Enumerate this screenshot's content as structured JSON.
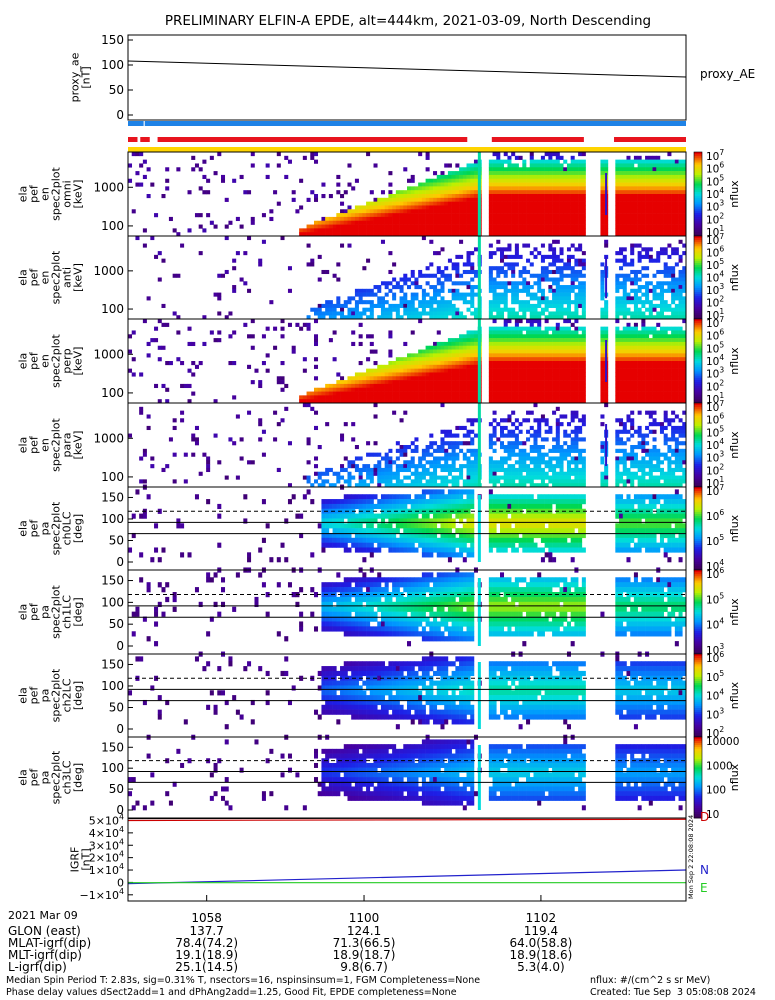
{
  "title": "PRELIMINARY ELFIN-A EPDE, alt=444km, 2021-03-09, North Descending",
  "colors": {
    "red": "#e8141e",
    "blue": "#1e82e6",
    "yellow": "#ffd400",
    "purple": "#3c005a",
    "field_N": "#2222cc",
    "field_E": "#22cc22",
    "field_D": "#cc0000"
  },
  "time_axis": {
    "date_label": "2021 Mar 09",
    "ticks": [
      "1058",
      "1100",
      "1102"
    ],
    "rows": [
      {
        "label": "GLON (east)",
        "values": [
          "137.7",
          "124.1",
          "119.4"
        ]
      },
      {
        "label": "MLAT-igrf(dip)",
        "values": [
          "78.4(74.2)",
          "71.3(66.5)",
          "64.0(58.8)"
        ]
      },
      {
        "label": "MLT-igrf(dip)",
        "values": [
          "19.1(18.9)",
          "18.9(18.7)",
          "18.9(18.6)"
        ]
      },
      {
        "label": "L-igrf(dip)",
        "values": [
          "25.1(14.5)",
          "9.8(6.7)",
          "5.3(4.0)"
        ]
      }
    ]
  },
  "footer": {
    "left_line1": "Median Spin Period T: 2.83s, sig=0.31% T, nsectors=16, nspinsinsum=1, FGM Completeness=None",
    "left_line2": "Phase delay values dSect2add=1 and dPhAng2add=1.25, Good Fit, EPDE completeness=None",
    "right_line1": "nflux: #/(cm^2 s sr MeV)",
    "right_line2": "Created: Tue Sep  3 05:08:08 2024",
    "vertical_stamp": "Mon Sep  2 22:08:08 2024"
  },
  "chart_data": [
    {
      "type": "line",
      "panel": "proxy_ae",
      "ylabel": [
        "proxy_ae",
        "[nT]"
      ],
      "legend": "proxy_AE",
      "y_ticks": [
        "150",
        "100",
        "50",
        "0"
      ],
      "ylim": [
        -10,
        160
      ],
      "x": [
        0,
        1
      ],
      "values": [
        108,
        76
      ]
    },
    {
      "type": "table",
      "panel": "status_bars",
      "segments": [
        {
          "color": "red",
          "row": 0,
          "from": 0.0,
          "to": 0.017
        },
        {
          "color": "red",
          "row": 0,
          "from": 0.022,
          "to": 0.039
        },
        {
          "color": "red",
          "row": 0,
          "from": 0.053,
          "to": 0.608
        },
        {
          "color": "red",
          "row": 0,
          "from": 0.652,
          "to": 0.817
        },
        {
          "color": "red",
          "row": 0,
          "from": 0.871,
          "to": 1.0
        },
        {
          "color": "blue",
          "row": 1,
          "from": 0.0,
          "to": 0.028
        },
        {
          "color": "blue",
          "row": 1,
          "from": 0.03,
          "to": 1.0
        }
      ]
    },
    {
      "type": "heatmap",
      "panel": "pef_en_spec2plot_omni",
      "ylabel": [
        "ela",
        "pef",
        "en",
        "spec2plot",
        "omni",
        "[keV]"
      ],
      "y_ticks": [
        "1000",
        "100"
      ],
      "colorbar": {
        "label": "nflux",
        "ticks": [
          "10^7",
          "10^6",
          "10^5",
          "10^4",
          "10^3",
          "10^2",
          "10^1"
        ]
      },
      "intensity": 1.0
    },
    {
      "type": "heatmap",
      "panel": "pef_en_spec2plot_anti",
      "ylabel": [
        "ela",
        "pef",
        "en",
        "spec2plot",
        "anti",
        "[keV]"
      ],
      "y_ticks": [
        "1000",
        "100"
      ],
      "colorbar": {
        "label": "nflux",
        "ticks": [
          "10^7",
          "10^6",
          "10^5",
          "10^4",
          "10^3",
          "10^2",
          "10^1"
        ]
      },
      "intensity": 0.35
    },
    {
      "type": "heatmap",
      "panel": "pef_en_spec2plot_perp",
      "ylabel": [
        "ela",
        "pef",
        "en",
        "spec2plot",
        "perp",
        "[keV]"
      ],
      "y_ticks": [
        "1000",
        "100"
      ],
      "colorbar": {
        "label": "nflux",
        "ticks": [
          "10^7",
          "10^6",
          "10^5",
          "10^4",
          "10^3",
          "10^2",
          "10^1"
        ]
      },
      "intensity": 1.0
    },
    {
      "type": "heatmap",
      "panel": "pef_en_spec2plot_para",
      "ylabel": [
        "ela",
        "pef",
        "en",
        "spec2plot",
        "para",
        "[keV]"
      ],
      "y_ticks": [
        "1000",
        "100"
      ],
      "colorbar": {
        "label": "nflux",
        "ticks": [
          "10^7",
          "10^6",
          "10^5",
          "10^4",
          "10^3",
          "10^2",
          "10^1"
        ]
      },
      "intensity": 0.35
    },
    {
      "type": "heatmap",
      "panel": "pef_pa_spec2plot_ch0LC",
      "ylabel": [
        "ela",
        "pef",
        "pa",
        "spec2plot",
        "ch0LC",
        "[deg]"
      ],
      "y_ticks": [
        "150",
        "100",
        "50",
        "0"
      ],
      "colorbar": {
        "label": "nflux",
        "ticks": [
          "10^7",
          "10^6",
          "10^5",
          "10^4"
        ]
      },
      "intensity": 0.9
    },
    {
      "type": "heatmap",
      "panel": "pef_pa_spec2plot_ch1LC",
      "ylabel": [
        "ela",
        "pef",
        "pa",
        "spec2plot",
        "ch1LC",
        "[deg]"
      ],
      "y_ticks": [
        "150",
        "100",
        "50",
        "0"
      ],
      "colorbar": {
        "label": "nflux",
        "ticks": [
          "10^6",
          "10^5",
          "10^4",
          "10^3"
        ]
      },
      "intensity": 0.8
    },
    {
      "type": "heatmap",
      "panel": "pef_pa_spec2plot_ch2LC",
      "ylabel": [
        "ela",
        "pef",
        "pa",
        "spec2plot",
        "ch2LC",
        "[deg]"
      ],
      "y_ticks": [
        "150",
        "100",
        "50",
        "0"
      ],
      "colorbar": {
        "label": "nflux",
        "ticks": [
          "10^6",
          "10^5",
          "10^4",
          "10^3",
          "10^2"
        ]
      },
      "intensity": 0.6
    },
    {
      "type": "heatmap",
      "panel": "pef_pa_spec2plot_ch3LC",
      "ylabel": [
        "ela",
        "pef",
        "pa",
        "spec2plot",
        "ch3LC",
        "[deg]"
      ],
      "y_ticks": [
        "150",
        "100",
        "50",
        "0"
      ],
      "colorbar": {
        "label": "nflux",
        "ticks": [
          "10000",
          "1000",
          "100",
          "10"
        ]
      },
      "intensity": 0.5
    },
    {
      "type": "line",
      "panel": "igrf",
      "ylabel": [
        "IGRF",
        "[nT]"
      ],
      "y_ticks": [
        "5×10^4",
        "4×10^4",
        "3×10^4",
        "2×10^4",
        "1×10^4",
        "0",
        "−1×10^4"
      ],
      "ylim": [
        -15000,
        52000
      ],
      "series": [
        {
          "name": "N",
          "values": [
            -1000,
            10000
          ]
        },
        {
          "name": "E",
          "values": [
            -200,
            -200
          ]
        },
        {
          "name": "D",
          "values": [
            50000,
            51000
          ]
        }
      ]
    }
  ]
}
